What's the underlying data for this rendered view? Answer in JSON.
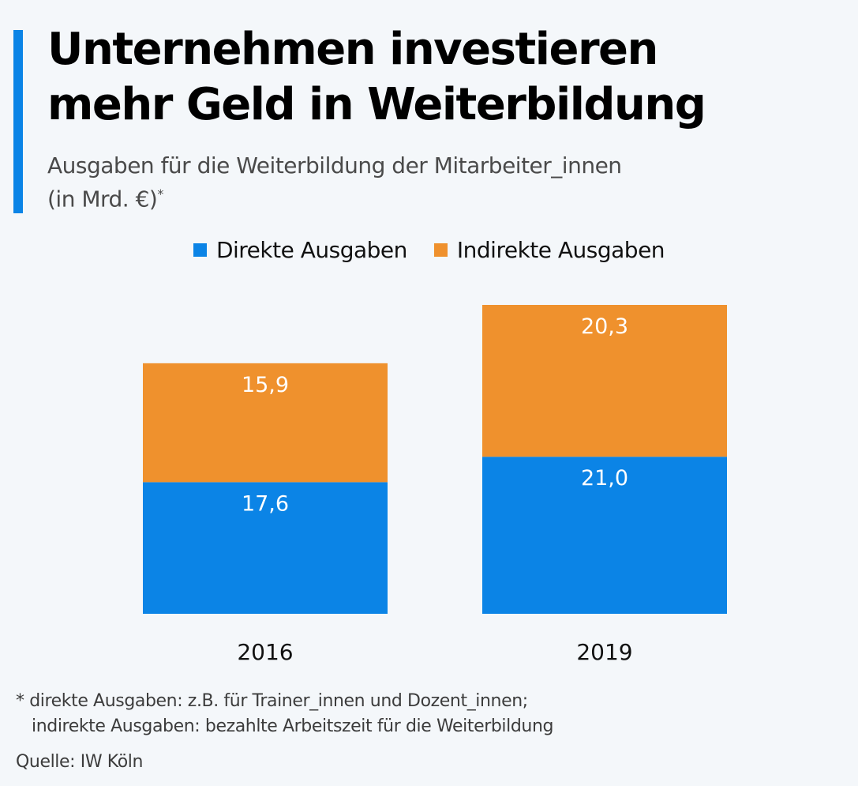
{
  "header": {
    "title_line1": "Unternehmen investieren",
    "title_line2": "mehr Geld in Weiterbildung",
    "subtitle_line1": "Ausgaben für die Weiterbildung der Mitarbeiter_innen",
    "subtitle_line2": "(in Mrd. €)",
    "subtitle_marker": "*"
  },
  "colors": {
    "accent": "#0b84e6",
    "direct": "#0b84e6",
    "indirect": "#ef912d",
    "label": "#ffffff",
    "axis_text": "#111111"
  },
  "chart_data": {
    "type": "bar",
    "stacked": true,
    "title": "Unternehmen investieren mehr Geld in Weiterbildung",
    "subtitle": "Ausgaben für die Weiterbildung der Mitarbeiter_innen (in Mrd. €)*",
    "categories": [
      "2016",
      "2019"
    ],
    "series": [
      {
        "name": "Direkte Ausgaben",
        "values": [
          17.6,
          21.0
        ],
        "labels": [
          "17,6",
          "21,0"
        ]
      },
      {
        "name": "Indirekte Ausgaben",
        "values": [
          15.9,
          20.3
        ],
        "labels": [
          "15,9",
          "20,3"
        ]
      }
    ],
    "xlabel": "",
    "ylabel": "Mrd. €",
    "ylim": [
      0,
      41.3
    ],
    "grid": false,
    "legend_position": "top-center"
  },
  "legend": {
    "items": [
      {
        "label": "Direkte Ausgaben"
      },
      {
        "label": "Indirekte Ausgaben"
      }
    ]
  },
  "footer": {
    "note_line1": "* direkte Ausgaben: z.B. für Trainer_innen und Dozent_innen;",
    "note_line2": "indirekte Ausgaben: bezahlte Arbeitszeit für die Weiterbildung",
    "source": "Quelle: IW Köln"
  }
}
